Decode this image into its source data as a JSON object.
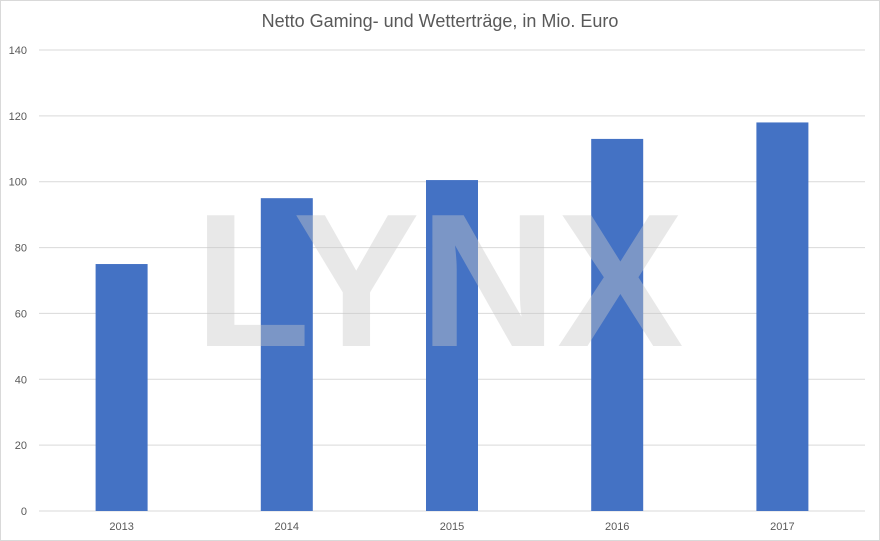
{
  "chart_data": {
    "type": "bar",
    "title": "Netto Gaming- und Wetterträge, in Mio. Euro",
    "xlabel": "",
    "ylabel": "",
    "categories": [
      "2013",
      "2014",
      "2015",
      "2016",
      "2017"
    ],
    "values": [
      75,
      95,
      100.5,
      113,
      118
    ],
    "ylim": [
      0,
      140
    ],
    "yticks": [
      0,
      20,
      40,
      60,
      80,
      100,
      120,
      140
    ],
    "grid": true,
    "legend": "none",
    "bar_color": "#4472c4",
    "gridline_color": "#d9d9d9"
  },
  "watermark": {
    "text": "LYNX",
    "color": "#c8c8c8"
  }
}
